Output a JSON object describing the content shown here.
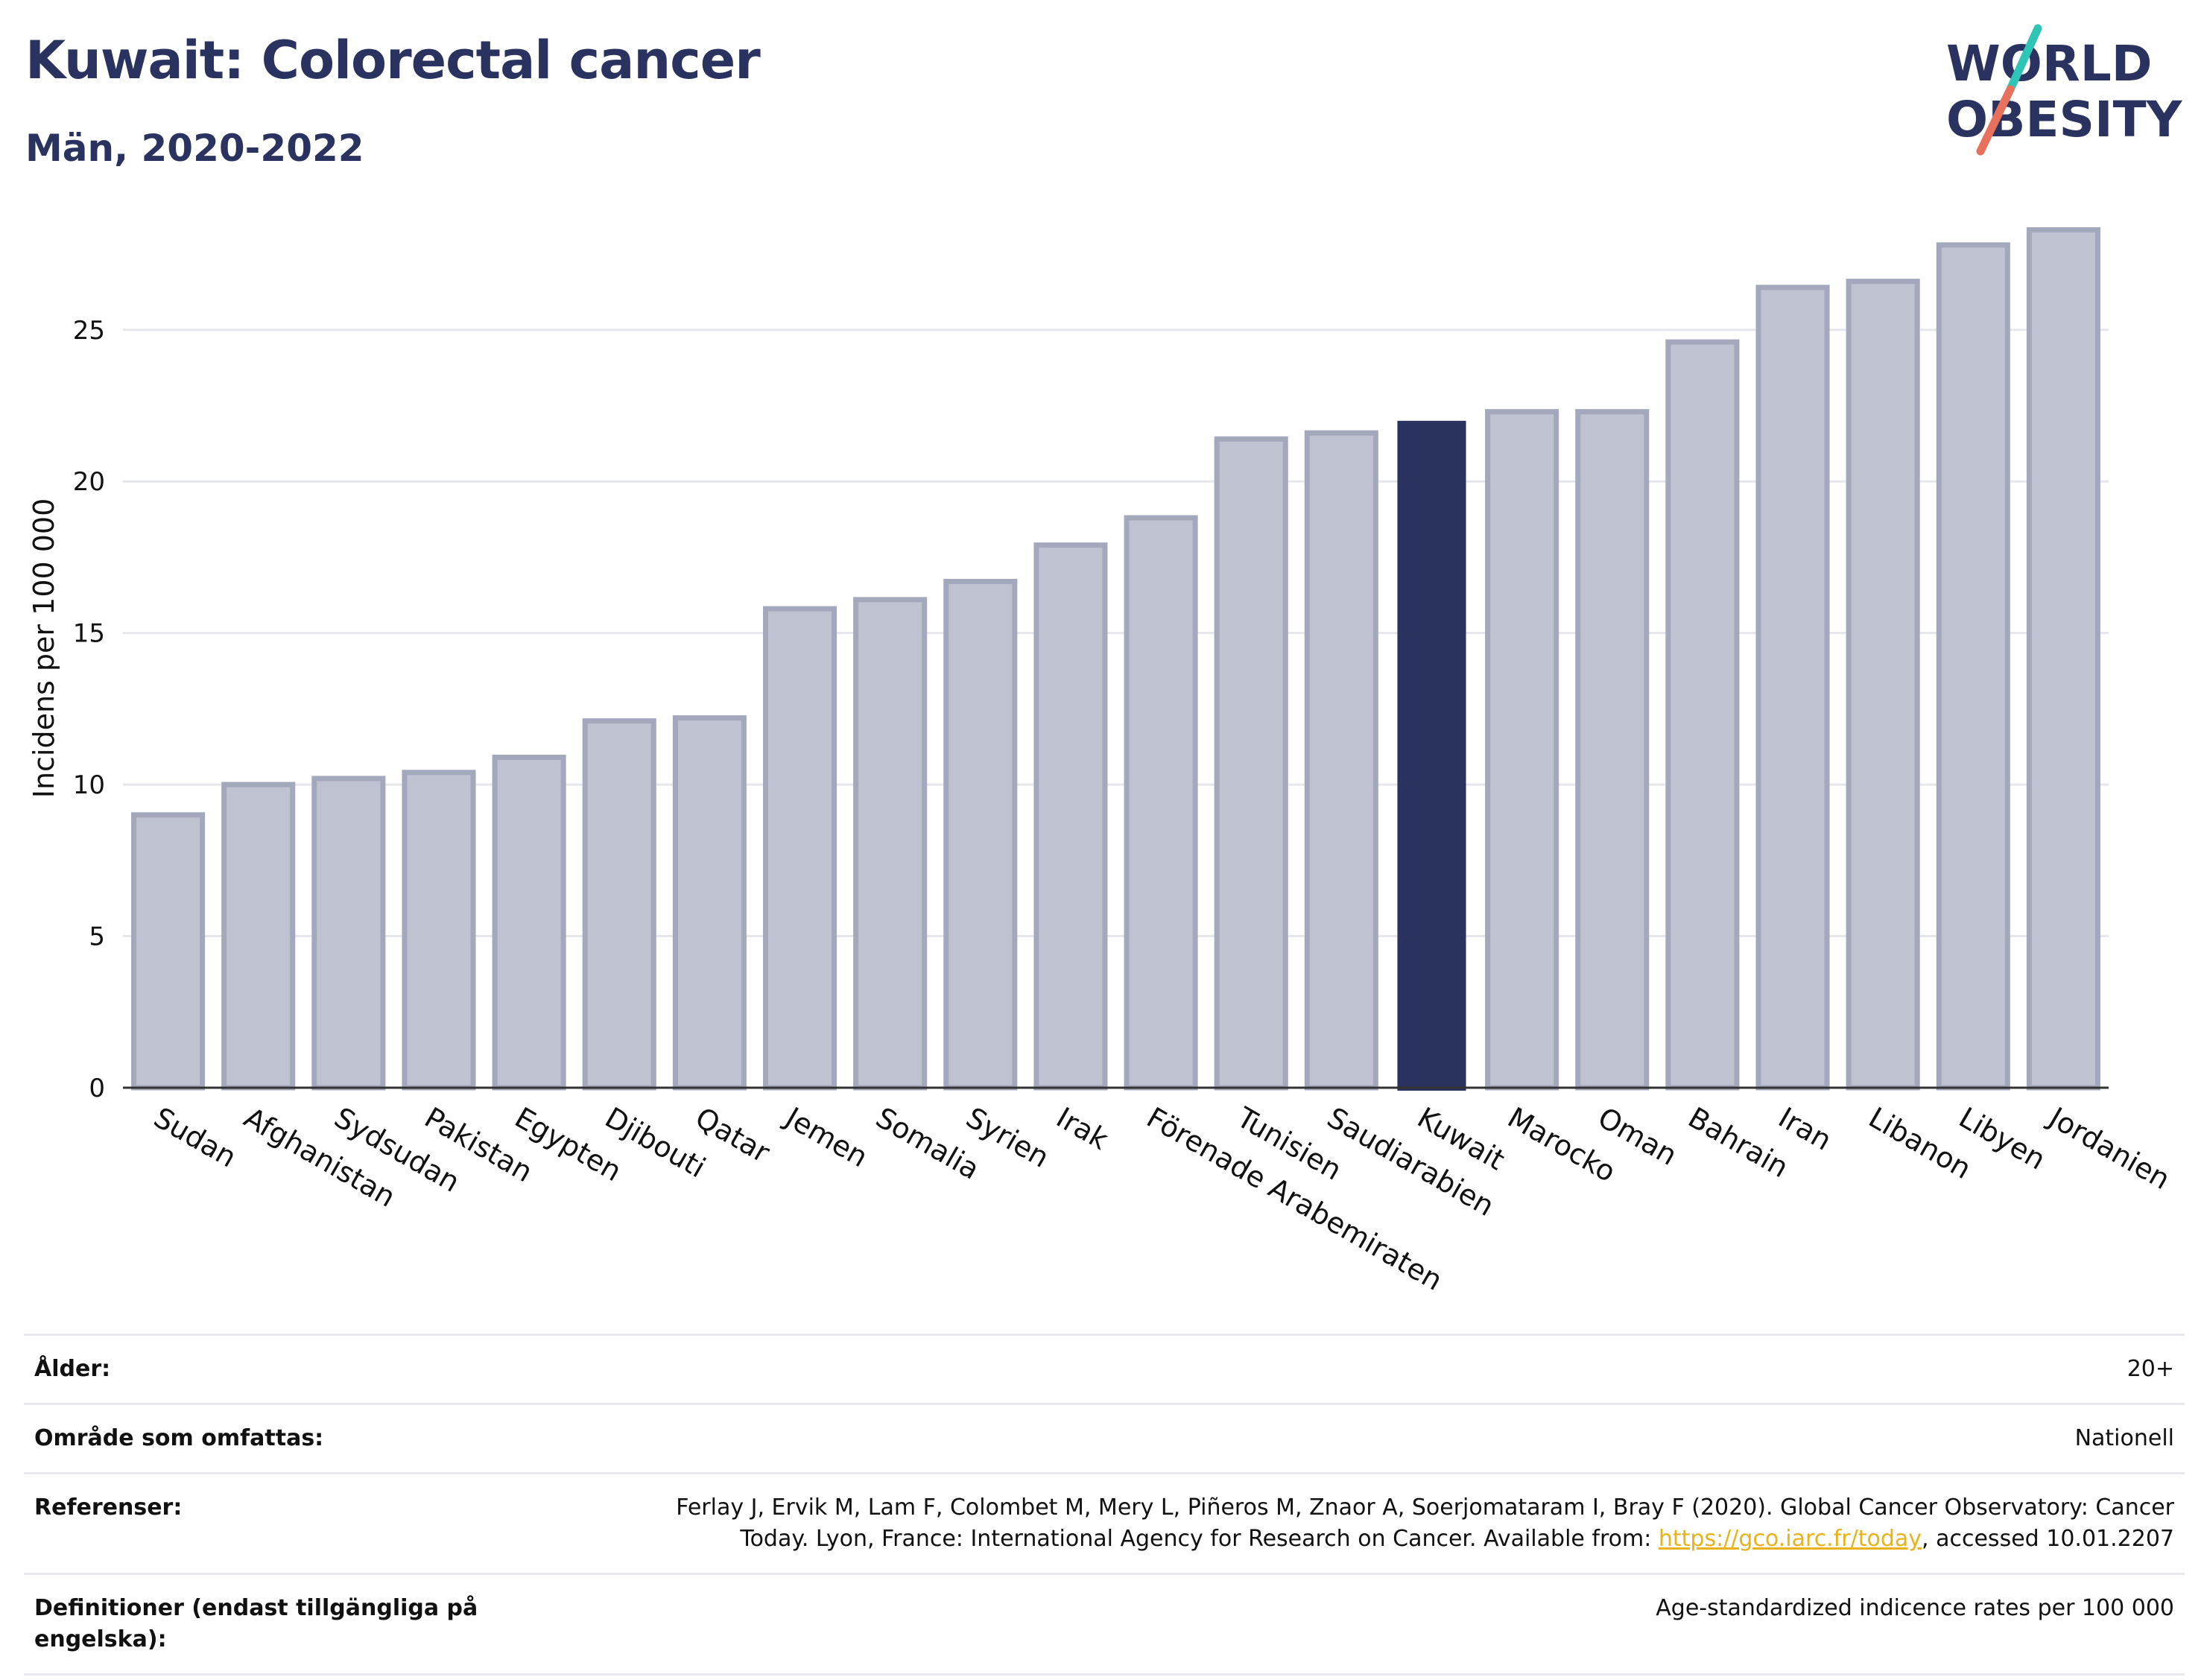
{
  "header": {
    "title": "Kuwait: Colorectal cancer",
    "subtitle": "Män, 2020-2022",
    "logo_line1": "WORLD",
    "logo_line2": "OBESITY"
  },
  "colors": {
    "title": "#2a3360",
    "bar": "#bfc2d0",
    "bar_stroke": "#a3a8bd",
    "highlight": "#2a3360",
    "grid": "#e6e7ec",
    "logo_teal": "#2ec4b6",
    "logo_coral": "#e8715e",
    "link": "#e8b21a"
  },
  "chart_data": {
    "type": "bar",
    "title": "Kuwait: Colorectal cancer",
    "subtitle": "Män, 2020-2022",
    "xlabel": "",
    "ylabel": "Incidens per 100 000",
    "ylim": [
      0,
      29
    ],
    "yticks": [
      0,
      5,
      10,
      15,
      20,
      25
    ],
    "grid": true,
    "highlight": "Kuwait",
    "categories": [
      "Sudan",
      "Afghanistan",
      "Sydsudan",
      "Pakistan",
      "Egypten",
      "Djibouti",
      "Qatar",
      "Jemen",
      "Somalia",
      "Syrien",
      "Irak",
      "Förenade Arabemiraten",
      "Tunisien",
      "Saudiarabien",
      "Kuwait",
      "Marocko",
      "Oman",
      "Bahrain",
      "Iran",
      "Libanon",
      "Libyen",
      "Jordanien"
    ],
    "values": [
      9.0,
      10.0,
      10.2,
      10.4,
      10.9,
      12.1,
      12.2,
      15.8,
      16.1,
      16.7,
      17.9,
      18.8,
      21.4,
      21.6,
      22.0,
      22.3,
      22.3,
      24.6,
      26.4,
      26.6,
      27.8,
      28.3
    ]
  },
  "info": {
    "age_label": "Ålder:",
    "age_value": "20+",
    "area_label": "Område som omfattas:",
    "area_value": "Nationell",
    "refs_label": "Referenser:",
    "refs_line1": "Ferlay J, Ervik M, Lam F, Colombet M, Mery L, Piñeros M, Znaor A, Soerjomataram I, Bray F (2020). Global Cancer Observatory: Cancer",
    "refs_line2_pre": "Today. Lyon, France: International Agency for Research on Cancer. Available from: ",
    "refs_link": "https://gco.iarc.fr/today",
    "refs_line2_post": ", accessed 10.01.2207",
    "defs_label": "Definitioner (endast tillgängliga på engelska):",
    "defs_value": "Age-standardized indicence rates per 100 000"
  }
}
